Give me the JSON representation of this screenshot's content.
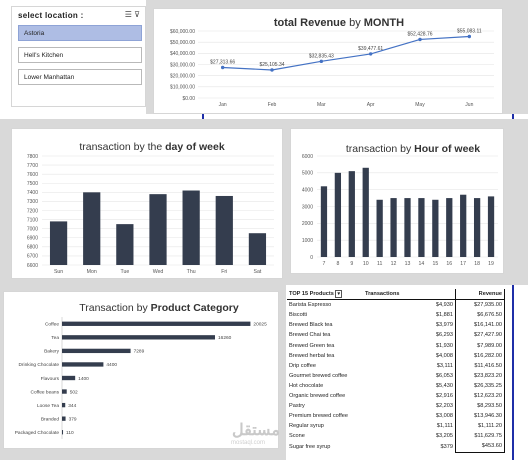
{
  "slicer": {
    "title": "select location :",
    "items": [
      {
        "label": "Astoria",
        "selected": true
      },
      {
        "label": "Hell's Kitchen",
        "selected": false
      },
      {
        "label": "Lower Manhattan",
        "selected": false
      }
    ]
  },
  "watermark": {
    "text": "مستقل",
    "sub": "mostaql.com"
  },
  "colors": {
    "bar": "#343d4e",
    "line": "#4472c4",
    "slicer_selected": "#aebde4",
    "guide_line": "#1f2fa8"
  },
  "chart_data": [
    {
      "id": "revenue",
      "type": "line",
      "title_parts": [
        "total Revenue",
        " by ",
        "MONTH"
      ],
      "categories": [
        "Jan",
        "Feb",
        "Mar",
        "Apr",
        "May",
        "Jun"
      ],
      "values": [
        27313.66,
        25105.34,
        32835.43,
        39477.61,
        52428.76,
        55083.11
      ],
      "labels": [
        "$27,313.66",
        "$25,105.34",
        "$32,835.43",
        "$39,477.61",
        "$52,428.76",
        "$55,083.11"
      ],
      "ylim": [
        0,
        60000
      ],
      "yticks": [
        "$0.00",
        "$10,000.00",
        "$20,000.00",
        "$30,000.00",
        "$40,000.00",
        "$50,000.00",
        "$60,000.00"
      ],
      "grid": true
    },
    {
      "id": "dow",
      "type": "bar",
      "title_parts": [
        "transaction by the ",
        "day of week"
      ],
      "categories": [
        "Sun",
        "Mon",
        "Tue",
        "Wed",
        "Thu",
        "Fri",
        "Sat"
      ],
      "values": [
        7080,
        7400,
        7050,
        7380,
        7420,
        7360,
        6950
      ],
      "ylim": [
        6600,
        7800
      ],
      "yticks": [
        "6600",
        "6700",
        "6800",
        "6900",
        "7000",
        "7100",
        "7200",
        "7300",
        "7400",
        "7500",
        "7600",
        "7700",
        "7800"
      ],
      "grid": true
    },
    {
      "id": "hour",
      "type": "bar",
      "title_parts": [
        "transaction by ",
        "Hour of week"
      ],
      "categories": [
        "7",
        "8",
        "9",
        "10",
        "11",
        "12",
        "13",
        "14",
        "15",
        "16",
        "17",
        "18",
        "19"
      ],
      "values": [
        4200,
        5000,
        5100,
        5300,
        3400,
        3500,
        3500,
        3500,
        3400,
        3500,
        3700,
        3500,
        3600
      ],
      "ylim": [
        0,
        6000
      ],
      "yticks": [
        "0",
        "1000",
        "2000",
        "3000",
        "4000",
        "5000",
        "6000"
      ],
      "grid": true
    },
    {
      "id": "category",
      "type": "bar",
      "orientation": "horizontal",
      "title_parts": [
        "Transaction by ",
        "Product Category"
      ],
      "categories": [
        "Coffee",
        "Tea",
        "Bakery",
        "Drinking Chocolate",
        "Flavours",
        "Coffee beans",
        "Loose Tea",
        "Branded",
        "Packaged Chocolate"
      ],
      "values": [
        20025,
        16260,
        7289,
        4400,
        1400,
        502,
        344,
        379,
        110
      ],
      "labels": [
        "20025",
        "16260",
        "7289",
        "4400",
        "1400",
        "502",
        "344",
        "379",
        "110"
      ],
      "xlim": [
        0,
        22000
      ],
      "grid": false
    },
    {
      "id": "top15",
      "type": "table",
      "headers": [
        "TOP 15 Products",
        "Transactions",
        "Revenue"
      ],
      "rows": [
        [
          "Barista Espresso",
          "$4,930",
          "$27,935.00"
        ],
        [
          "Biscotti",
          "$1,881",
          "$6,676.50"
        ],
        [
          "Brewed Black tea",
          "$3,979",
          "$16,141.00"
        ],
        [
          "Brewed Chai tea",
          "$6,293",
          "$27,427.90"
        ],
        [
          "Brewed Green tea",
          "$1,930",
          "$7,989.00"
        ],
        [
          "Brewed herbal tea",
          "$4,008",
          "$16,282.00"
        ],
        [
          "Drip coffee",
          "$3,111",
          "$11,416.50"
        ],
        [
          "Gourmet brewed coffee",
          "$6,053",
          "$23,823.20"
        ],
        [
          "Hot chocolate",
          "$5,430",
          "$26,335.25"
        ],
        [
          "Organic brewed coffee",
          "$2,916",
          "$12,623.20"
        ],
        [
          "Pastry",
          "$2,203",
          "$8,293.50"
        ],
        [
          "Premium brewed coffee",
          "$3,008",
          "$13,946.30"
        ],
        [
          "Regular syrup",
          "$1,111",
          "$1,111.20"
        ],
        [
          "Scone",
          "$3,205",
          "$11,629.75"
        ],
        [
          "Sugar free syrup",
          "$379",
          "$453.60"
        ]
      ]
    }
  ]
}
